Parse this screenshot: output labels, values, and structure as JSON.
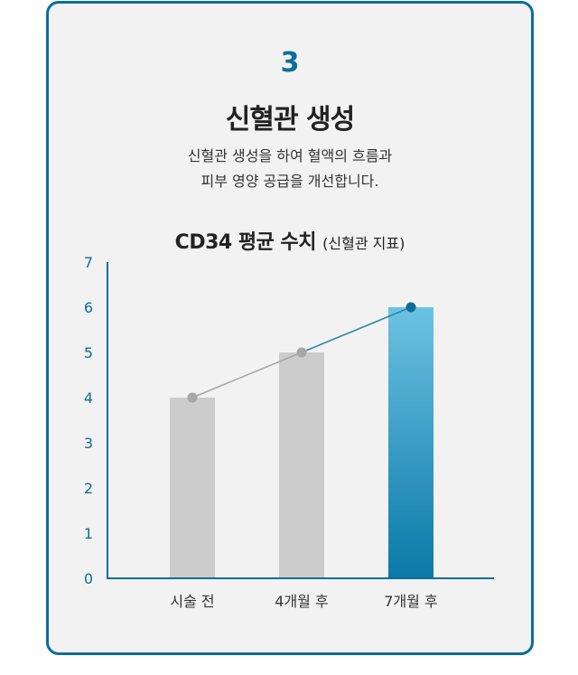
{
  "card": {
    "step_number": "3",
    "title": "신혈관 생성",
    "description_lines": [
      "신혈관 생성을 하여 혈액의 흐름과",
      "피부 영양 공급을 개선합니다."
    ]
  },
  "chart_data": {
    "type": "bar",
    "title": "CD34 평균 수치",
    "subtitle": "(신혈관 지표)",
    "categories": [
      "시술 전",
      "4개월 후",
      "7개월 후"
    ],
    "values": [
      4,
      5,
      6
    ],
    "ylim": [
      0,
      7
    ],
    "yticks": [
      0,
      1,
      2,
      3,
      4,
      5,
      6,
      7
    ],
    "overlay_line": true,
    "grid": false,
    "colors": {
      "bar_default": "#cccccc",
      "bar_highlight_top": "#6cc2e2",
      "bar_highlight_bottom": "#0a79a8",
      "axis": "#0d6d9a",
      "line_default": "#a6a6a6",
      "line_highlight": "#2f86ad",
      "point_highlight": "#0d6d9a"
    }
  }
}
